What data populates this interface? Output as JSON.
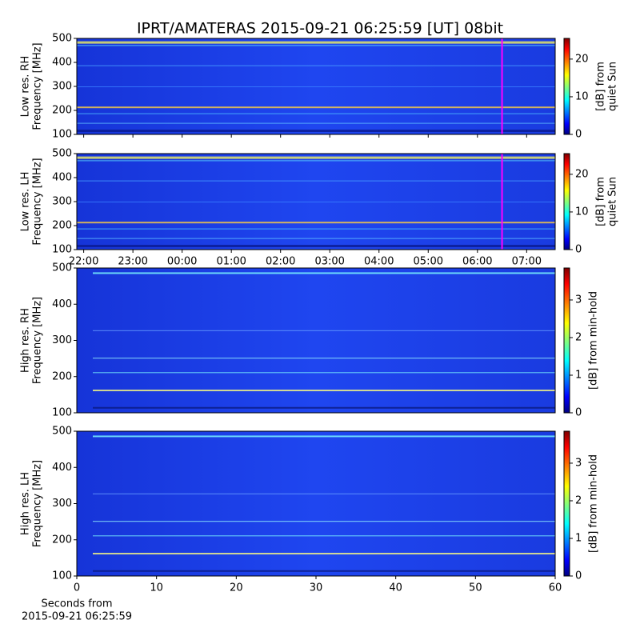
{
  "chart_data": [
    {
      "type": "heatmap",
      "title": "IPRT/AMATERAS 2015-09-21 06:25:59 [UT]   08bit",
      "ylabel": [
        "Low res. RH",
        "Frequency [MHz]"
      ],
      "ylim": [
        100,
        500
      ],
      "yticks": [
        100,
        200,
        300,
        400,
        500
      ],
      "xlim": [
        21.86,
        31.58
      ],
      "marker_x": 30.5,
      "marker_color": "#ff00ff",
      "colormap": "jet",
      "colorbar": {
        "label": [
          "[dB] from",
          "quiet Sun"
        ],
        "clim": [
          0,
          25.5
        ],
        "ticks": [
          0,
          10,
          20
        ]
      }
    },
    {
      "type": "heatmap",
      "ylabel": [
        "Low res. LH",
        "Frequency [MHz]"
      ],
      "ylim": [
        100,
        500
      ],
      "yticks": [
        100,
        200,
        300,
        400,
        500
      ],
      "xlim": [
        21.86,
        31.58
      ],
      "xticks": [
        {
          "value": 22,
          "label": "22:00"
        },
        {
          "value": 23,
          "label": "23:00"
        },
        {
          "value": 24,
          "label": "00:00"
        },
        {
          "value": 25,
          "label": "01:00"
        },
        {
          "value": 26,
          "label": "02:00"
        },
        {
          "value": 27,
          "label": "03:00"
        },
        {
          "value": 28,
          "label": "04:00"
        },
        {
          "value": 29,
          "label": "05:00"
        },
        {
          "value": 30,
          "label": "06:00"
        },
        {
          "value": 31,
          "label": "07:00"
        }
      ],
      "marker_x": 30.5,
      "marker_color": "#ff00ff",
      "colormap": "jet",
      "colorbar": {
        "label": [
          "[dB] from",
          "quiet Sun"
        ],
        "clim": [
          0,
          25.5
        ],
        "ticks": [
          0,
          10,
          20
        ]
      }
    },
    {
      "type": "heatmap",
      "ylabel": [
        "High res. RH",
        "Frequency [MHz]"
      ],
      "ylim": [
        100,
        500
      ],
      "yticks": [
        100,
        200,
        300,
        400,
        500
      ],
      "xlim": [
        0,
        60
      ],
      "colormap": "jet",
      "colorbar": {
        "label": [
          "[dB] from min-hold"
        ],
        "clim": [
          0,
          3.85
        ],
        "ticks": [
          0,
          1,
          2,
          3
        ]
      }
    },
    {
      "type": "heatmap",
      "ylabel": [
        "High res. LH",
        "Frequency [MHz]"
      ],
      "ylim": [
        100,
        500
      ],
      "yticks": [
        100,
        200,
        300,
        400,
        500
      ],
      "xlim": [
        0,
        60
      ],
      "xticks": [
        0,
        10,
        20,
        30,
        40,
        50,
        60
      ],
      "xlabel": [
        "Seconds from",
        "2015-09-21 06:25:59"
      ],
      "colormap": "jet",
      "colorbar": {
        "label": [
          "[dB] from min-hold"
        ],
        "clim": [
          0,
          3.85
        ],
        "ticks": [
          0,
          1,
          2,
          3
        ]
      }
    }
  ]
}
